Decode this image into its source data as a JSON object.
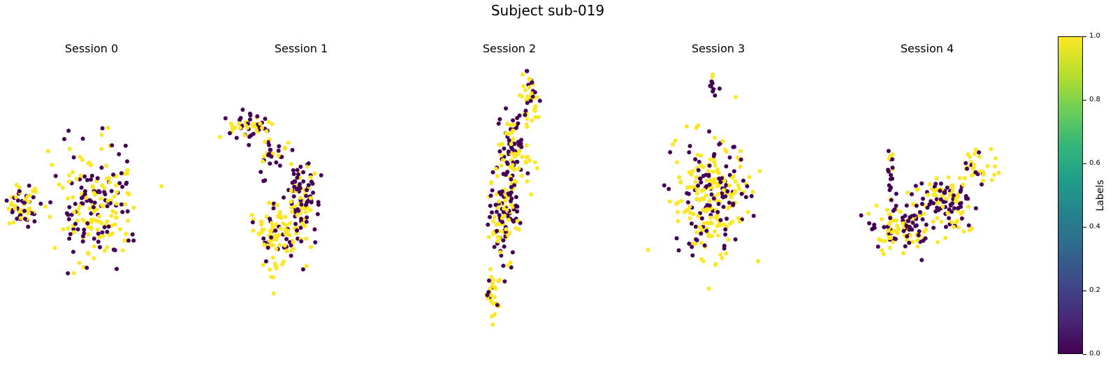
{
  "chart_data": {
    "type": "scatter",
    "title": "Subject sub-019",
    "colormap": "viridis",
    "colors": {
      "label_0": "#440154",
      "label_1": "#fde725"
    },
    "colorbar": {
      "label": "Labels",
      "range": [
        0.0,
        1.0
      ],
      "ticks": [
        0.0,
        0.2,
        0.4,
        0.6,
        0.8,
        1.0
      ],
      "tick_labels": [
        "0.0",
        "0.2",
        "0.4",
        "0.6",
        "0.8",
        "1.0"
      ]
    },
    "axes_visible": false,
    "grid": false,
    "panels": [
      {
        "title": "Session 0",
        "clusters": [
          {
            "cx": -5.0,
            "cy": 0.0,
            "sx": 0.9,
            "sy": 0.6,
            "n": 70,
            "p_yellow": 0.5
          },
          {
            "cx": 1.2,
            "cy": 0.2,
            "sx": 1.6,
            "sy": 1.8,
            "n": 200,
            "p_yellow": 0.55
          }
        ]
      },
      {
        "title": "Session 1",
        "clusters": [
          {
            "cx": -3.5,
            "cy": 5.0,
            "sx": 0.9,
            "sy": 0.6,
            "n": 55,
            "p_yellow": 0.6
          },
          {
            "cx": -1.6,
            "cy": 2.8,
            "sx": 0.6,
            "sy": 0.7,
            "n": 30,
            "p_yellow": 0.3
          },
          {
            "cx": 1.0,
            "cy": 0.6,
            "sx": 0.8,
            "sy": 1.1,
            "n": 90,
            "p_yellow": 0.25
          },
          {
            "cx": -1.0,
            "cy": -1.8,
            "sx": 1.1,
            "sy": 1.1,
            "n": 120,
            "p_yellow": 0.65
          }
        ]
      },
      {
        "title": "Session 2",
        "clusters": [
          {
            "cx": 1.8,
            "cy": 7.0,
            "sx": 0.4,
            "sy": 0.9,
            "n": 40,
            "p_yellow": 0.65
          },
          {
            "cx": 0.5,
            "cy": 3.5,
            "sx": 0.7,
            "sy": 1.4,
            "n": 100,
            "p_yellow": 0.5
          },
          {
            "cx": -0.4,
            "cy": -0.5,
            "sx": 0.6,
            "sy": 1.5,
            "n": 120,
            "p_yellow": 0.45
          },
          {
            "cx": -1.5,
            "cy": -5.5,
            "sx": 0.3,
            "sy": 0.9,
            "n": 30,
            "p_yellow": 0.7
          }
        ]
      },
      {
        "title": "Session 3",
        "clusters": [
          {
            "cx": 0.0,
            "cy": 7.5,
            "sx": 0.12,
            "sy": 0.5,
            "n": 10,
            "p_yellow": 0.2
          },
          {
            "cx": 0.0,
            "cy": 0.5,
            "sx": 1.6,
            "sy": 1.9,
            "n": 260,
            "p_yellow": 0.6
          }
        ]
      },
      {
        "title": "Session 4",
        "clusters": [
          {
            "cx": -3.2,
            "cy": 2.2,
            "sx": 0.2,
            "sy": 1.0,
            "n": 20,
            "p_yellow": 0.35
          },
          {
            "cx": -2.2,
            "cy": -1.3,
            "sx": 1.2,
            "sy": 0.8,
            "n": 120,
            "p_yellow": 0.55
          },
          {
            "cx": 0.5,
            "cy": 0.6,
            "sx": 1.0,
            "sy": 0.7,
            "n": 60,
            "p_yellow": 0.45
          },
          {
            "cx": 2.3,
            "cy": -0.1,
            "sx": 0.7,
            "sy": 0.8,
            "n": 50,
            "p_yellow": 0.4
          },
          {
            "cx": 4.2,
            "cy": 2.2,
            "sx": 0.8,
            "sy": 0.5,
            "n": 35,
            "p_yellow": 0.8
          }
        ]
      }
    ]
  }
}
